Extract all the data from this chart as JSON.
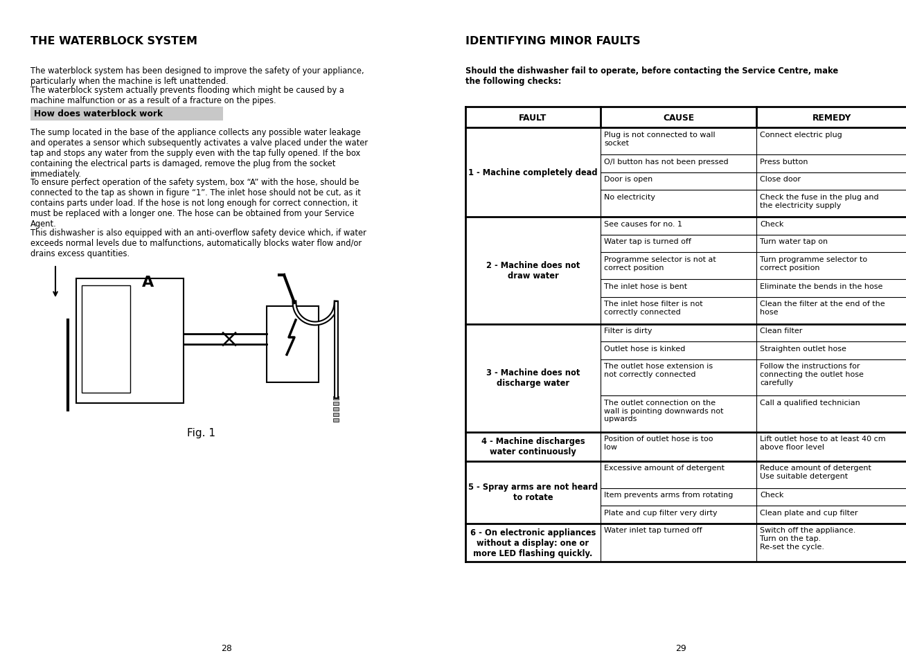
{
  "bg_color": "#ffffff",
  "left_title": "THE WATERBLOCK SYSTEM",
  "right_title": "IDENTIFYING MINOR FAULTS",
  "left_para1a": "The waterblock system has been designed to improve the safety of your appliance,\nparticularly when the machine is left unattended.",
  "left_para1b": "The waterblock system actually prevents flooding which might be caused by a\nmachine malfunction or as a result of a fracture on the pipes.",
  "how_does_header": "How does waterblock work",
  "left_para2": "The sump located in the base of the appliance collects any possible water leakage\nand operates a sensor which subsequently activates a valve placed under the water\ntap and stops any water from the supply even with the tap fully opened. If the box\ncontaining the electrical parts is damaged, remove the plug from the socket\nimmediately.",
  "left_para3": "To ensure perfect operation of the safety system, box “A” with the hose, should be\nconnected to the tap as shown in figure “1”. The inlet hose should not be cut, as it\ncontains parts under load. If the hose is not long enough for correct connection, it\nmust be replaced with a longer one. The hose can be obtained from your Service\nAgent.",
  "left_para4": "This dishwasher is also equipped with an anti-overflow safety device which, if water\nexceeds normal levels due to malfunctions, automatically blocks water flow and/or\ndrains excess quantities.",
  "right_intro": "Should the dishwasher fail to operate, before contacting the Service Centre, make\nthe following checks:",
  "fig_label": "Fig. 1",
  "page_left": "28",
  "page_right": "29",
  "table_headers": [
    "FAULT",
    "CAUSE",
    "REMEDY"
  ],
  "table_rows": [
    {
      "fault": "1 - Machine completely dead",
      "fault_center": true,
      "causes": [
        "Plug is not connected to wall\nsocket",
        "O/I button has not been pressed",
        "Door is open",
        "No electricity"
      ],
      "remedies": [
        "Connect electric plug",
        "Press button",
        "Close door",
        "Check the fuse in the plug and\nthe electricity supply"
      ]
    },
    {
      "fault": "2 - Machine does not\ndraw water",
      "fault_center": true,
      "causes": [
        "See causes for no. 1",
        "Water tap is turned off",
        "Programme selector is not at\ncorrect position",
        "The inlet hose is bent",
        "The inlet hose filter is not\ncorrectly connected"
      ],
      "remedies": [
        "Check",
        "Turn water tap on",
        "Turn programme selector to\ncorrect position",
        "Eliminate the bends in the hose",
        "Clean the filter at the end of the\nhose"
      ]
    },
    {
      "fault": "3 - Machine does not\ndischarge water",
      "fault_center": true,
      "causes": [
        "Filter is dirty",
        "Outlet hose is kinked",
        "The outlet hose extension is\nnot correctly connected",
        "The outlet connection on the\nwall is pointing downwards not\nupwards"
      ],
      "remedies": [
        "Clean filter",
        "Straighten outlet hose",
        "Follow the instructions for\nconnecting the outlet hose\ncarefully",
        "Call a qualified technician"
      ]
    },
    {
      "fault": "4 - Machine discharges\nwater continuously",
      "fault_center": true,
      "causes": [
        "Position of outlet hose is too\nlow"
      ],
      "remedies": [
        "Lift outlet hose to at least 40 cm\nabove floor level"
      ]
    },
    {
      "fault": "5 - Spray arms are not heard\nto rotate",
      "fault_center": true,
      "causes": [
        "Excessive amount of detergent",
        "Item prevents arms from rotating",
        "Plate and cup filter very dirty"
      ],
      "remedies": [
        "Reduce amount of detergent\nUse suitable detergent",
        "Check",
        "Clean plate and cup filter"
      ]
    },
    {
      "fault": "6 - On electronic appliances\nwithout a display: one or\nmore LED flashing quickly.",
      "fault_center": false,
      "causes": [
        "Water inlet tap turned off"
      ],
      "remedies": [
        "Switch off the appliance.\nTurn on the tap.\nRe-set the cycle."
      ]
    }
  ]
}
